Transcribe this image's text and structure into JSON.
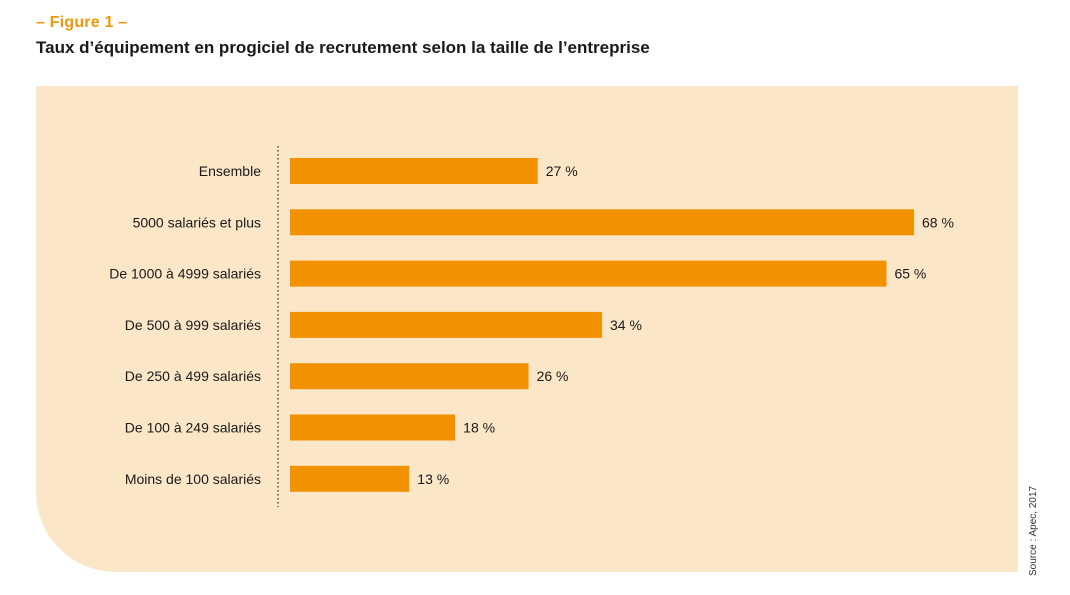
{
  "figure_label": "– Figure 1 –",
  "title": "Taux d’équipement en progiciel de recrutement selon la taille de l’entreprise",
  "source": "Source : Apec, 2017",
  "colors": {
    "bar": "#f39200",
    "panel_background": "#fbe6c7",
    "figure_label": "#f0960a"
  },
  "chart_data": {
    "type": "bar",
    "orientation": "horizontal",
    "title": "Taux d’équipement en progiciel de recrutement selon la taille de l’entreprise",
    "categories": [
      "Ensemble",
      "5000 salariés et plus",
      "De 1000 à 4999 salariés",
      "De 500 à 999 salariés",
      "De 250 à 499 salariés",
      "De 100 à 249 salariés",
      "Moins de 100 salariés"
    ],
    "values": [
      27,
      68,
      65,
      34,
      26,
      18,
      13
    ],
    "value_labels": [
      "27 %",
      "68 %",
      "65 %",
      "34 %",
      "26 %",
      "18 %",
      "13 %"
    ],
    "unit": "%",
    "xlim": [
      0,
      68
    ],
    "grid": false,
    "legend": "none"
  }
}
